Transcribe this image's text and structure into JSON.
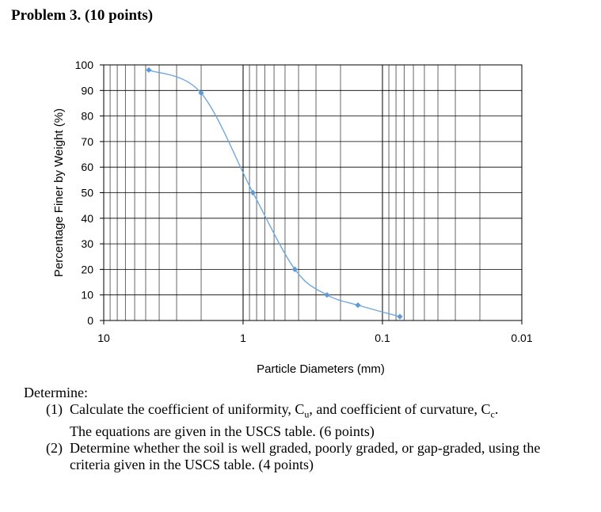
{
  "header": {
    "title": "Problem 3.  (10 points)"
  },
  "chart_data": {
    "type": "line",
    "title": "",
    "xlabel": "Particle Diameters (mm)",
    "ylabel": "Percentage Finer by Weight (%)",
    "x_scale": "log",
    "x_reversed": true,
    "xlim": [
      10,
      0.01
    ],
    "ylim": [
      0,
      100
    ],
    "x_ticks": [
      10,
      1,
      0.1,
      0.01
    ],
    "x_tick_labels": [
      "10",
      "1",
      "0.1",
      "0.01"
    ],
    "y_ticks": [
      0,
      10,
      20,
      30,
      40,
      50,
      60,
      70,
      80,
      90,
      100
    ],
    "y_tick_labels": [
      "0",
      "10",
      "20",
      "30",
      "40",
      "50",
      "60",
      "70",
      "80",
      "90",
      "100"
    ],
    "grid": true,
    "series_color": "#6fa8dc",
    "marker_color": "#5b9bd5",
    "x": [
      4.75,
      2.0,
      0.85,
      0.425,
      0.25,
      0.15,
      0.075
    ],
    "y": [
      98,
      89,
      50,
      20,
      10,
      6,
      1.5
    ]
  },
  "questions": {
    "intro": "Determine:",
    "items": [
      {
        "num": "(1)",
        "line1": "Calculate the coefficient of uniformity, C",
        "sub1": "u",
        "mid": ", and coefficient of curvature, C",
        "sub2": "c",
        "end": ".",
        "line2": "The equations are given in the USCS table. (6 points)"
      },
      {
        "num": "(2)",
        "line1": "Determine whether the soil is well graded, poorly graded, or gap-graded, using the",
        "line2": "criteria given in the USCS table. (4 points)"
      }
    ]
  }
}
